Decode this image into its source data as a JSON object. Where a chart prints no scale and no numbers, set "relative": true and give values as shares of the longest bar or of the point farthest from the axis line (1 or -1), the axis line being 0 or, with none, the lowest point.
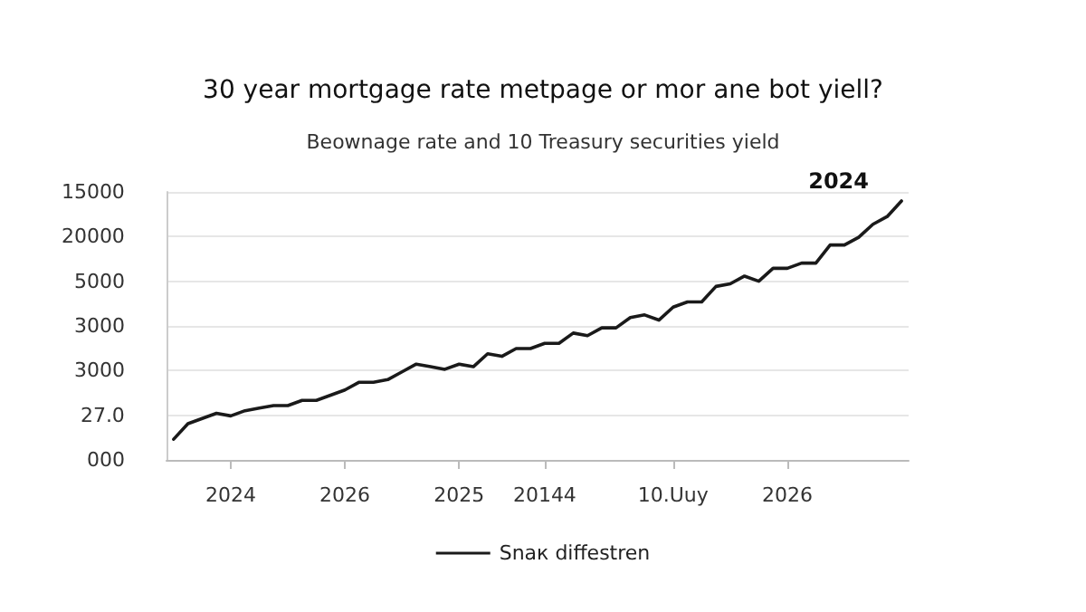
{
  "chart_data": {
    "type": "line",
    "title": "30 year mortgage rate metpage or mor ane bot yiell?",
    "subtitle": "Beownage rate and 10 Treasury securities yield",
    "relative": true,
    "categories": [
      null,
      null,
      null,
      null,
      "2024",
      null,
      null,
      null,
      null,
      null,
      null,
      null,
      "2026",
      null,
      null,
      null,
      null,
      null,
      null,
      null,
      "2025",
      null,
      null,
      null,
      null,
      null,
      "20144",
      null,
      null,
      null,
      null,
      null,
      null,
      null,
      null,
      "10.Uuy",
      null,
      null,
      null,
      null,
      null,
      null,
      null,
      "2026",
      null,
      null,
      null,
      null,
      null,
      null,
      null,
      null
    ],
    "series": [
      {
        "name": "Snaк diffestren",
        "color": "#1a1a1a",
        "values": [
          0.08,
          0.14,
          0.16,
          0.18,
          0.17,
          0.19,
          0.2,
          0.21,
          0.21,
          0.23,
          0.23,
          0.25,
          0.27,
          0.3,
          0.3,
          0.31,
          0.34,
          0.37,
          0.36,
          0.35,
          0.37,
          0.36,
          0.41,
          0.4,
          0.43,
          0.43,
          0.45,
          0.45,
          0.49,
          0.48,
          0.51,
          0.51,
          0.55,
          0.56,
          0.54,
          0.59,
          0.61,
          0.61,
          0.67,
          0.68,
          0.71,
          0.69,
          0.74,
          0.74,
          0.76,
          0.76,
          0.83,
          0.83,
          0.86,
          0.91,
          0.94,
          1
        ]
      }
    ],
    "annotations": [
      "2024",
      "000",
      "27.0",
      "3000",
      "3000",
      "5000",
      "20000",
      "15000"
    ],
    "grid": "y",
    "legend": "bottom",
    "marker": "none",
    "line_style": "solid"
  }
}
